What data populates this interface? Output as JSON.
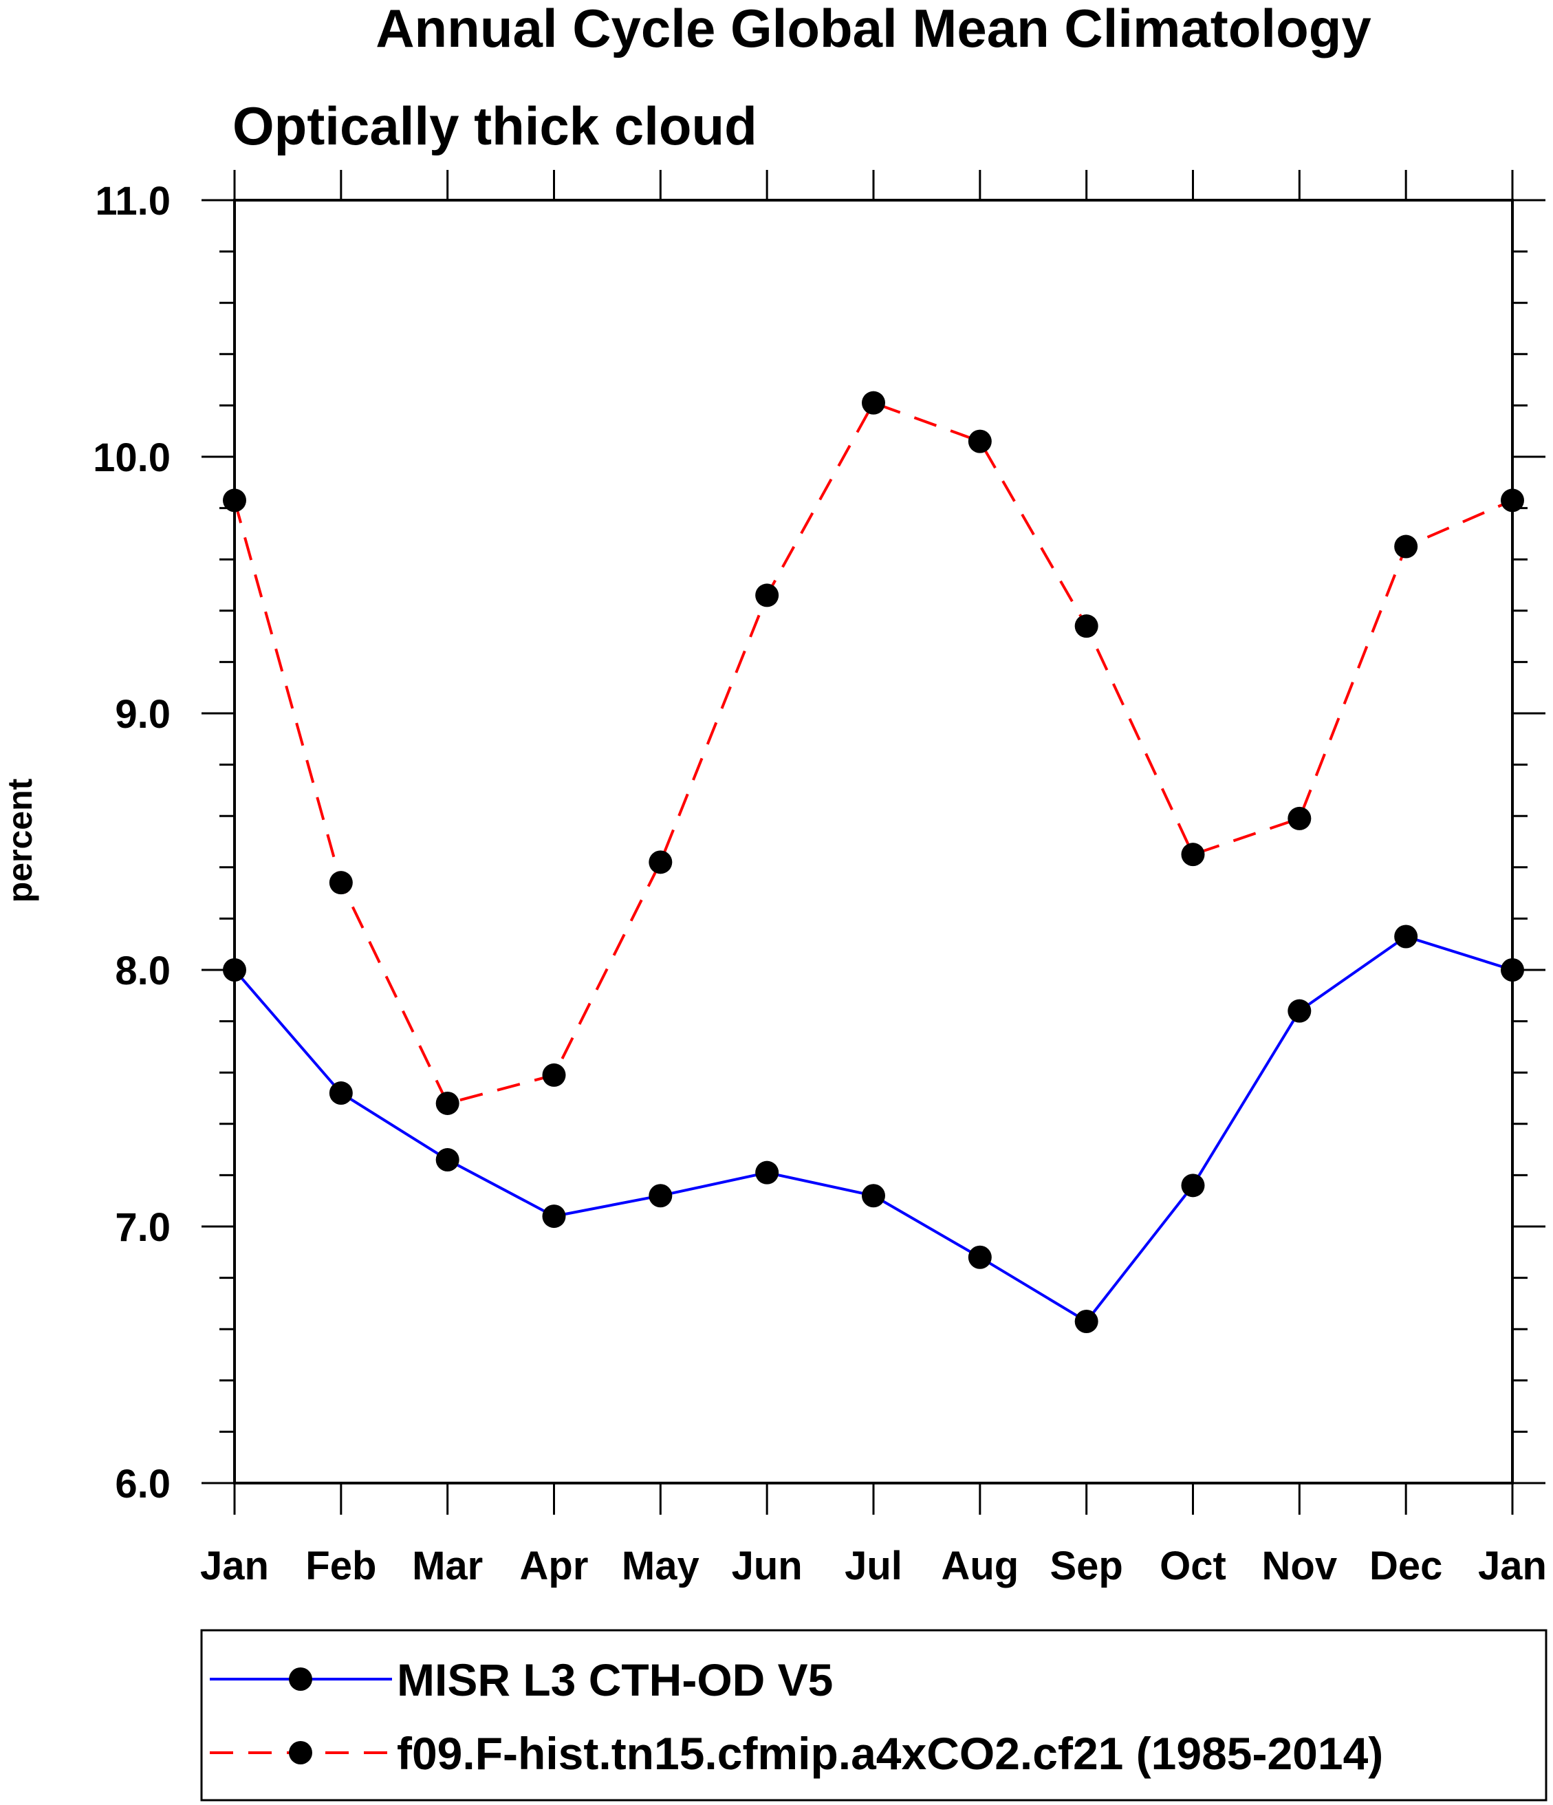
{
  "chart_data": {
    "type": "line",
    "title": "Annual Cycle Global Mean Climatology",
    "subtitle": "Optically thick cloud",
    "xlabel": "",
    "ylabel": "percent",
    "categories": [
      "Jan",
      "Feb",
      "Mar",
      "Apr",
      "May",
      "Jun",
      "Jul",
      "Aug",
      "Sep",
      "Oct",
      "Nov",
      "Dec",
      "Jan"
    ],
    "ylim": [
      6.0,
      11.0
    ],
    "yticks": [
      "6.0",
      "7.0",
      "8.0",
      "9.0",
      "10.0",
      "11.0"
    ],
    "grid": false,
    "legend_position": "bottom",
    "series": [
      {
        "name": "MISR L3 CTH-OD V5",
        "color": "#0000ff",
        "line_style": "solid",
        "marker": "filled-circle",
        "values": [
          8.0,
          7.52,
          7.26,
          7.04,
          7.12,
          7.21,
          7.12,
          6.88,
          6.63,
          7.16,
          7.84,
          8.13,
          8.0
        ]
      },
      {
        "name": "f09.F-hist.tn15.cfmip.a4xCO2.cf21 (1985-2014)",
        "color": "#ff0000",
        "line_style": "dashed",
        "marker": "filled-circle",
        "values": [
          9.83,
          8.34,
          7.48,
          7.59,
          8.42,
          9.46,
          10.21,
          10.06,
          9.34,
          8.45,
          8.59,
          9.65,
          9.83
        ]
      }
    ]
  }
}
